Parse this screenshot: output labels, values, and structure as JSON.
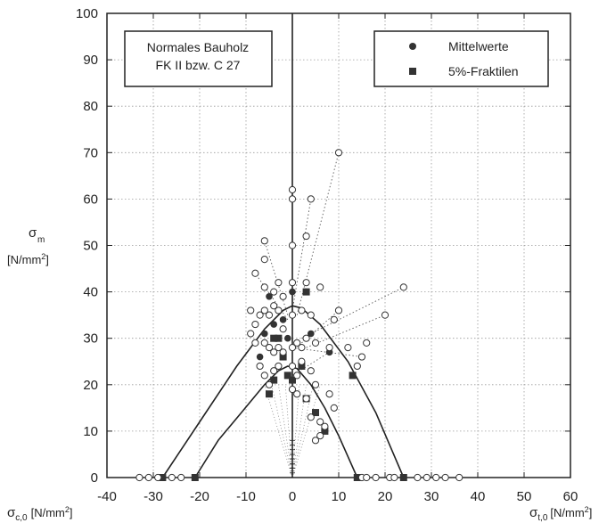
{
  "chart_data": {
    "type": "scatter",
    "title": "",
    "xlim": [
      -40,
      60
    ],
    "ylim": [
      0,
      100
    ],
    "x_ticks": [
      "-40",
      "-30",
      "-20",
      "-10",
      "0",
      "10",
      "20",
      "30",
      "40",
      "50",
      "60"
    ],
    "y_ticks": [
      "0",
      "10",
      "20",
      "30",
      "40",
      "50",
      "60",
      "70",
      "80",
      "90",
      "100"
    ],
    "grid": "dotted",
    "ylabel": {
      "symbol": "σ",
      "sub": "m",
      "unit_pre": "[N/mm",
      "unit_sup": "2",
      "unit_post": "]"
    },
    "xlabel_left": {
      "symbol": "σ",
      "sub": "c,0",
      "unit_pre": "[N/mm",
      "unit_sup": "2",
      "unit_post": "]"
    },
    "xlabel_right": {
      "symbol": "σ",
      "sub": "t,0",
      "unit_pre": "[N/mm",
      "unit_sup": "2",
      "unit_post": "]"
    },
    "annotation_lines": [
      "Normales Bauholz",
      "FK II bzw. C 27"
    ],
    "legend": {
      "position": "top-right",
      "mean_label": "Mittelwerte",
      "fractile_label": "5%-Fraktilen"
    },
    "series": [
      {
        "name": "Mittelwerte",
        "marker": "filled-circle",
        "points": [
          [
            -5,
            39
          ],
          [
            -4,
            33
          ],
          [
            3,
            40
          ],
          [
            -7,
            26
          ],
          [
            -6,
            31
          ],
          [
            -2,
            34
          ],
          [
            -1,
            30
          ],
          [
            0,
            40
          ],
          [
            4,
            31
          ],
          [
            8,
            27
          ]
        ]
      },
      {
        "name": "5%-Fraktilen",
        "marker": "filled-square",
        "points": [
          [
            -28,
            0
          ],
          [
            -21,
            0
          ],
          [
            14,
            0
          ],
          [
            24,
            0
          ],
          [
            -5,
            18
          ],
          [
            -4,
            21
          ],
          [
            -3,
            30
          ],
          [
            -2,
            26
          ],
          [
            -1,
            22
          ],
          [
            0,
            21
          ],
          [
            2,
            24
          ],
          [
            3,
            17
          ],
          [
            3,
            40
          ],
          [
            5,
            14
          ],
          [
            7,
            10
          ],
          [
            13,
            22
          ],
          [
            -4,
            30
          ]
        ]
      },
      {
        "name": "",
        "marker": "open-circle",
        "points": [
          [
            -33,
            0
          ],
          [
            -31,
            0
          ],
          [
            -29,
            0
          ],
          [
            -26,
            0
          ],
          [
            -24,
            0
          ],
          [
            15,
            0
          ],
          [
            16,
            0
          ],
          [
            18,
            0
          ],
          [
            21,
            0
          ],
          [
            22,
            0
          ],
          [
            27,
            0
          ],
          [
            29,
            0
          ],
          [
            31,
            0
          ],
          [
            33,
            0
          ],
          [
            36,
            0
          ],
          [
            0,
            62
          ],
          [
            0,
            60
          ],
          [
            0,
            50
          ],
          [
            4,
            60
          ],
          [
            3,
            52
          ],
          [
            10,
            70
          ],
          [
            -6,
            51
          ],
          [
            -6,
            47
          ],
          [
            -8,
            44
          ],
          [
            -6,
            41
          ],
          [
            -4,
            40
          ],
          [
            -3,
            42
          ],
          [
            -2,
            39
          ],
          [
            0,
            42
          ],
          [
            3,
            42
          ],
          [
            6,
            41
          ],
          [
            -9,
            36
          ],
          [
            -8,
            33
          ],
          [
            -7,
            35
          ],
          [
            -6,
            36
          ],
          [
            -5,
            35
          ],
          [
            -4,
            37
          ],
          [
            -3,
            36
          ],
          [
            -2,
            32
          ],
          [
            0,
            35
          ],
          [
            2,
            36
          ],
          [
            4,
            35
          ],
          [
            9,
            34
          ],
          [
            10,
            36
          ],
          [
            20,
            35
          ],
          [
            24,
            41
          ],
          [
            -9,
            31
          ],
          [
            -8,
            29
          ],
          [
            -6,
            29
          ],
          [
            -5,
            28
          ],
          [
            -4,
            27
          ],
          [
            -3,
            28
          ],
          [
            -2,
            27
          ],
          [
            0,
            28
          ],
          [
            1,
            29
          ],
          [
            2,
            28
          ],
          [
            3,
            30
          ],
          [
            5,
            29
          ],
          [
            8,
            28
          ],
          [
            12,
            28
          ],
          [
            16,
            29
          ],
          [
            -7,
            24
          ],
          [
            -6,
            22
          ],
          [
            -5,
            20
          ],
          [
            -4,
            23
          ],
          [
            -3,
            24
          ],
          [
            0,
            24
          ],
          [
            1,
            22
          ],
          [
            2,
            25
          ],
          [
            4,
            23
          ],
          [
            5,
            20
          ],
          [
            8,
            18
          ],
          [
            9,
            15
          ],
          [
            14,
            24
          ],
          [
            15,
            26
          ],
          [
            0,
            19
          ],
          [
            3,
            17
          ],
          [
            4,
            13
          ],
          [
            5,
            8
          ],
          [
            6,
            12
          ],
          [
            7,
            11
          ],
          [
            6,
            9
          ],
          [
            1,
            18
          ]
        ]
      }
    ],
    "boundary_curves": [
      {
        "name": "outer",
        "points": [
          [
            -28,
            0
          ],
          [
            -20,
            12
          ],
          [
            -12,
            24
          ],
          [
            -6,
            32
          ],
          [
            -2,
            36
          ],
          [
            0,
            37
          ],
          [
            2,
            36.5
          ],
          [
            6,
            33
          ],
          [
            12,
            25
          ],
          [
            18,
            14
          ],
          [
            24,
            0
          ]
        ]
      },
      {
        "name": "inner",
        "points": [
          [
            -21,
            0
          ],
          [
            -16,
            8
          ],
          [
            -11,
            14
          ],
          [
            -6,
            20
          ],
          [
            -3,
            23
          ],
          [
            -1,
            24
          ],
          [
            1,
            23.5
          ],
          [
            4,
            20
          ],
          [
            7,
            15
          ],
          [
            10,
            9
          ],
          [
            14,
            0
          ]
        ]
      }
    ],
    "dotted_lines": [
      [
        [
          0,
          36
        ],
        [
          0,
          62
        ]
      ],
      [
        [
          0,
          36
        ],
        [
          4,
          60
        ]
      ],
      [
        [
          1,
          35
        ],
        [
          10,
          70
        ]
      ],
      [
        [
          -1,
          35
        ],
        [
          -6,
          51
        ]
      ],
      [
        [
          -1,
          34
        ],
        [
          -8,
          44
        ]
      ],
      [
        [
          2,
          30
        ],
        [
          24,
          41
        ]
      ],
      [
        [
          3,
          28
        ],
        [
          20,
          35
        ]
      ],
      [
        [
          2,
          29
        ],
        [
          10,
          36
        ]
      ],
      [
        [
          0,
          28
        ],
        [
          15,
          26
        ]
      ],
      [
        [
          0,
          22
        ],
        [
          8,
          27
        ]
      ]
    ]
  }
}
